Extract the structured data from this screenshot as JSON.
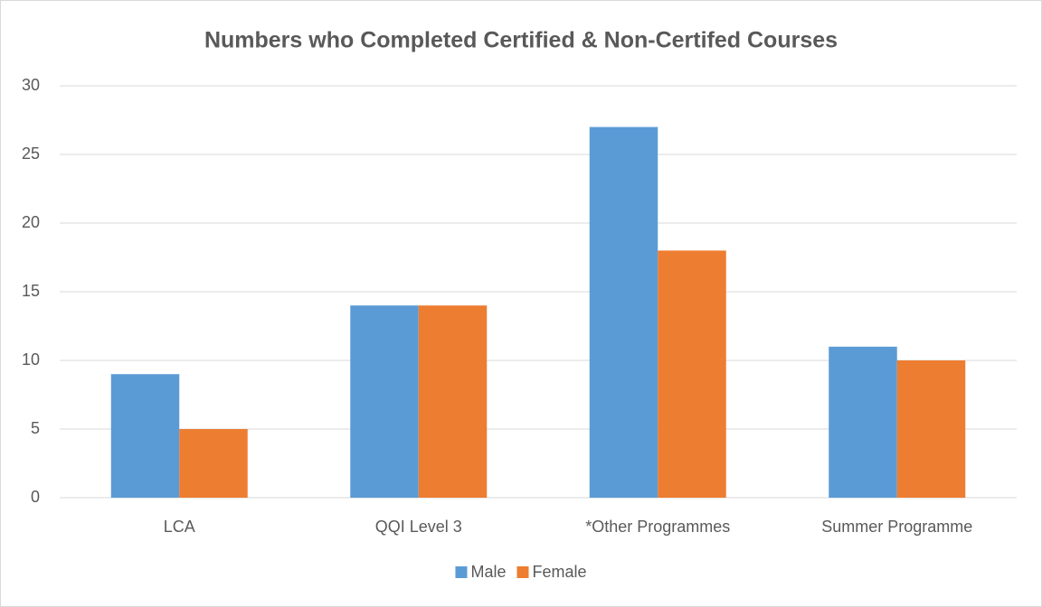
{
  "chart_data": {
    "type": "bar",
    "title": "Numbers who Completed Certified & Non-Certifed Courses",
    "categories": [
      "LCA",
      "QQI Level 3",
      "*Other Programmes",
      "Summer Programme"
    ],
    "series": [
      {
        "name": "Male",
        "color": "#5b9bd5",
        "values": [
          9,
          14,
          27,
          11
        ]
      },
      {
        "name": "Female",
        "color": "#ed7d31",
        "values": [
          5,
          14,
          18,
          10
        ]
      }
    ],
    "ylim": [
      0,
      30
    ],
    "yticks": [
      0,
      5,
      10,
      15,
      20,
      25,
      30
    ],
    "grid": true,
    "legend": "bottom"
  }
}
